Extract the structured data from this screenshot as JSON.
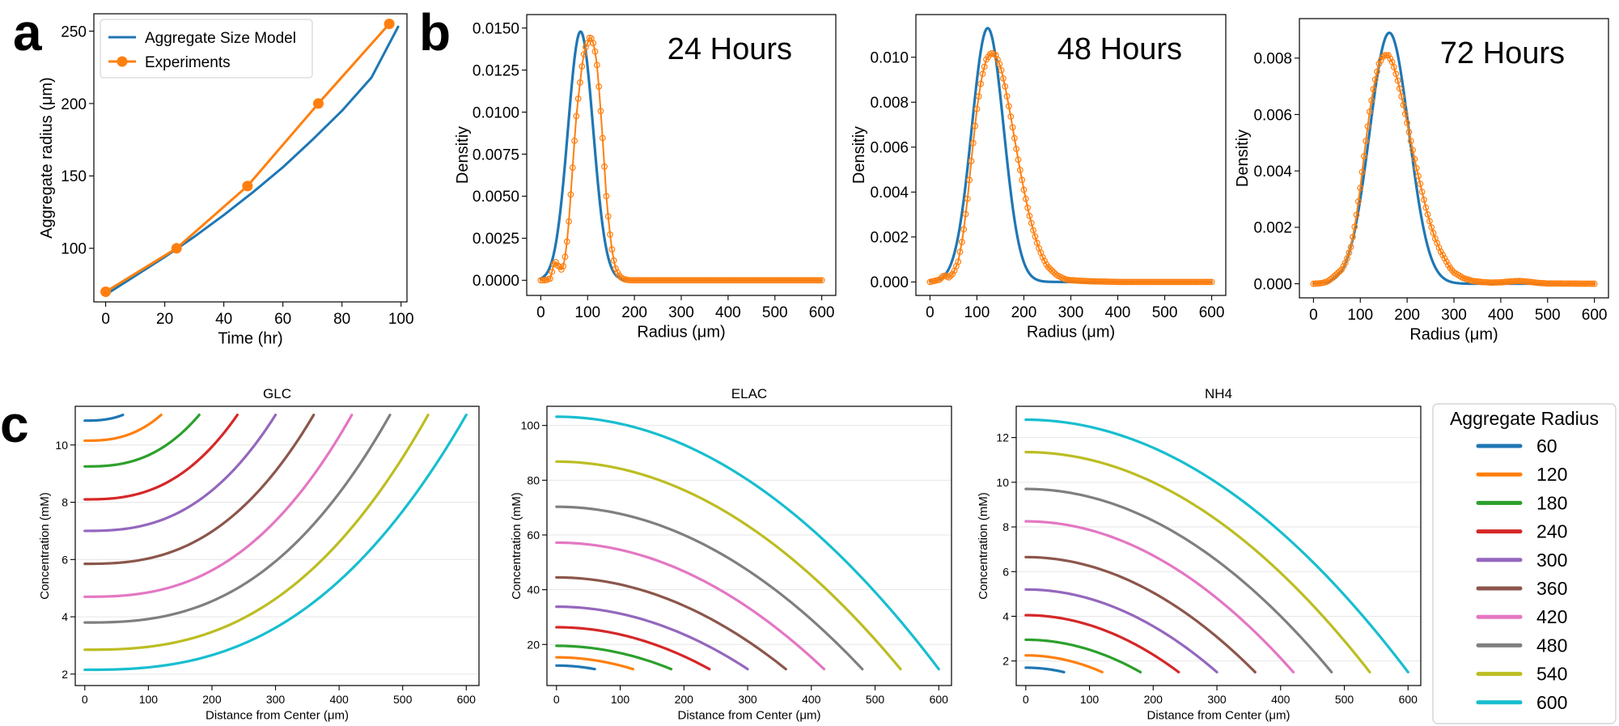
{
  "panel_letters": [
    "a",
    "b",
    "c"
  ],
  "colors": {
    "model": "#1f77b4",
    "experiment": "#ff7f0e",
    "palette": [
      "#1f77b4",
      "#ff7f0e",
      "#2ca02c",
      "#d62728",
      "#9467bd",
      "#8c564b",
      "#e377c2",
      "#7f7f7f",
      "#bcbd22",
      "#17becf"
    ]
  },
  "legend_c": {
    "title": "Aggregate Radius",
    "items": [
      "60",
      "120",
      "180",
      "240",
      "300",
      "360",
      "420",
      "480",
      "540",
      "600"
    ]
  },
  "chart_data": [
    {
      "id": "a",
      "type": "line",
      "xlabel": "Time (hr)",
      "ylabel": "Aggregate radius (μm)",
      "xlim": [
        -4,
        102
      ],
      "ylim": [
        63,
        262
      ],
      "xticks": [
        0,
        20,
        40,
        60,
        80,
        100
      ],
      "yticks": [
        100,
        150,
        200,
        250
      ],
      "legend": [
        "Aggregate Size Model",
        "Experiments"
      ],
      "series": [
        {
          "name": "Aggregate Size Model",
          "x": [
            0,
            10,
            20,
            30,
            40,
            50,
            60,
            70,
            80,
            90,
            99
          ],
          "y": [
            68,
            81,
            94,
            108,
            123,
            139,
            156,
            175,
            195,
            218,
            253
          ]
        },
        {
          "name": "Experiments",
          "x": [
            0,
            24,
            48,
            72,
            96
          ],
          "y": [
            70,
            100,
            143,
            200,
            255
          ]
        }
      ]
    },
    {
      "id": "b1",
      "type": "line",
      "annotation": "24 Hours",
      "xlabel": "Radius (μm)",
      "ylabel": "Densitiy",
      "xlim": [
        -30,
        630
      ],
      "ylim": [
        -0.0009,
        0.0158
      ],
      "xticks": [
        0,
        100,
        200,
        300,
        400,
        500,
        600
      ],
      "yticks": [
        "0.0000",
        "0.0025",
        "0.0050",
        "0.0075",
        "0.0100",
        "0.0125",
        "0.0150"
      ],
      "model": {
        "mu": 85,
        "sigma": 27,
        "peak": 0.0148
      },
      "experiment": {
        "x": [
          0,
          10,
          20,
          25,
          30,
          35,
          40,
          45,
          50,
          55,
          60,
          65,
          70,
          75,
          80,
          85,
          90,
          95,
          100,
          105,
          110,
          115,
          120,
          125,
          130,
          135,
          140,
          145,
          150,
          155,
          160,
          165,
          170,
          175,
          180,
          190,
          200,
          600
        ],
        "y": [
          0,
          0,
          0.0001,
          0.0006,
          0.0012,
          0.0009,
          0.0008,
          0.0006,
          0.001,
          0.002,
          0.0035,
          0.0055,
          0.0075,
          0.0095,
          0.0108,
          0.012,
          0.0132,
          0.0138,
          0.0141,
          0.0145,
          0.0143,
          0.0138,
          0.0128,
          0.0112,
          0.0093,
          0.0072,
          0.005,
          0.0035,
          0.0022,
          0.0013,
          0.0007,
          0.0004,
          0.0002,
          0.0001,
          5e-05,
          0,
          0,
          0
        ]
      }
    },
    {
      "id": "b2",
      "type": "line",
      "annotation": "48 Hours",
      "xlabel": "Radius (μm)",
      "ylabel": "Densitiy",
      "xlim": [
        -30,
        630
      ],
      "ylim": [
        -0.0006,
        0.0119
      ],
      "xticks": [
        0,
        100,
        200,
        300,
        400,
        500,
        600
      ],
      "yticks": [
        "0.000",
        "0.002",
        "0.004",
        "0.006",
        "0.008",
        "0.010"
      ],
      "model": {
        "mu": 123,
        "sigma": 34,
        "peak": 0.0113
      },
      "experiment": {
        "x": [
          0,
          10,
          20,
          25,
          30,
          40,
          50,
          60,
          70,
          80,
          90,
          100,
          110,
          120,
          130,
          140,
          150,
          160,
          170,
          180,
          190,
          200,
          210,
          220,
          230,
          240,
          250,
          260,
          270,
          280,
          290,
          300,
          320,
          340,
          360,
          400,
          600
        ],
        "y": [
          0,
          5e-05,
          0.0001,
          0.0002,
          0.0003,
          0.0002,
          0.0004,
          0.0009,
          0.002,
          0.0037,
          0.0058,
          0.0077,
          0.0091,
          0.0099,
          0.0102,
          0.0101,
          0.0096,
          0.0087,
          0.0076,
          0.0064,
          0.0052,
          0.0041,
          0.0031,
          0.0023,
          0.0016,
          0.0011,
          0.0007,
          0.0005,
          0.0003,
          0.0002,
          0.0001,
          8e-05,
          5e-05,
          3e-05,
          2e-05,
          0,
          0
        ]
      }
    },
    {
      "id": "b3",
      "type": "line",
      "annotation": "72 Hours",
      "xlabel": "Radius (μm)",
      "ylabel": "Densitiy",
      "xlim": [
        -30,
        630
      ],
      "ylim": [
        -0.0005,
        0.0094
      ],
      "xticks": [
        0,
        100,
        200,
        300,
        400,
        500,
        600
      ],
      "yticks": [
        "0.000",
        "0.002",
        "0.004",
        "0.006",
        "0.008"
      ],
      "model": {
        "mu": 162,
        "sigma": 42,
        "peak": 0.0089
      },
      "experiment": {
        "x": [
          0,
          10,
          20,
          30,
          40,
          50,
          60,
          70,
          80,
          90,
          100,
          110,
          120,
          130,
          140,
          150,
          160,
          170,
          180,
          190,
          200,
          210,
          220,
          230,
          240,
          250,
          260,
          270,
          280,
          290,
          300,
          310,
          320,
          340,
          360,
          380,
          400,
          420,
          440,
          460,
          480,
          500,
          600
        ],
        "y": [
          0,
          1e-05,
          3e-05,
          8e-05,
          0.0002,
          0.00035,
          0.0005,
          0.0008,
          0.0013,
          0.0022,
          0.0034,
          0.0048,
          0.0061,
          0.0071,
          0.0078,
          0.0081,
          0.0081,
          0.0078,
          0.0072,
          0.0065,
          0.0057,
          0.0049,
          0.0041,
          0.0034,
          0.0027,
          0.0021,
          0.0016,
          0.0012,
          0.0009,
          0.0006,
          0.0004,
          0.0003,
          0.0002,
          0.0001,
          6e-05,
          4e-05,
          5e-05,
          8e-05,
          0.0001,
          7e-05,
          3e-05,
          1e-05,
          0
        ]
      }
    },
    {
      "id": "c1",
      "type": "line",
      "title": "GLC",
      "xlabel": "Distance from Center (μm)",
      "ylabel": "Concentration (mM)",
      "xlim": [
        -15,
        620
      ],
      "ylim": [
        1.6,
        11.35
      ],
      "xticks": [
        0,
        100,
        200,
        300,
        400,
        500,
        600
      ],
      "yticks": [
        2,
        4,
        6,
        8,
        10
      ],
      "grid": true,
      "radii": [
        60,
        120,
        180,
        240,
        300,
        360,
        420,
        480,
        540,
        600
      ],
      "center": [
        10.85,
        10.15,
        9.25,
        8.1,
        7.0,
        5.85,
        4.7,
        3.8,
        2.85,
        2.15
      ],
      "surface": 11.05,
      "shape": "convex"
    },
    {
      "id": "c2",
      "type": "line",
      "title": "ELAC",
      "xlabel": "Distance from Center (μm)",
      "ylabel": "Concentration (mM)",
      "xlim": [
        -15,
        620
      ],
      "ylim": [
        5,
        107
      ],
      "xticks": [
        0,
        100,
        200,
        300,
        400,
        500,
        600
      ],
      "yticks": [
        20,
        40,
        60,
        80,
        100
      ],
      "grid": true,
      "radii": [
        60,
        120,
        180,
        240,
        300,
        360,
        420,
        480,
        540,
        600
      ],
      "center": [
        12.3,
        15.3,
        19.5,
        26.3,
        33.8,
        44.5,
        57.2,
        70.3,
        86.8,
        103.2
      ],
      "surface": 11.0,
      "shape": "concave"
    },
    {
      "id": "c3",
      "type": "line",
      "title": "NH4",
      "xlabel": "Distance from Center (μm)",
      "ylabel": "Concentration (mM)",
      "xlim": [
        -15,
        620
      ],
      "ylim": [
        0.9,
        13.4
      ],
      "xticks": [
        0,
        100,
        200,
        300,
        400,
        500,
        600
      ],
      "yticks": [
        2,
        4,
        6,
        8,
        10,
        12
      ],
      "grid": true,
      "radii": [
        60,
        120,
        180,
        240,
        300,
        360,
        420,
        480,
        540,
        600
      ],
      "center": [
        1.7,
        2.25,
        2.95,
        4.05,
        5.2,
        6.65,
        8.25,
        9.7,
        11.35,
        12.8
      ],
      "surface": 1.5,
      "shape": "concave"
    }
  ]
}
